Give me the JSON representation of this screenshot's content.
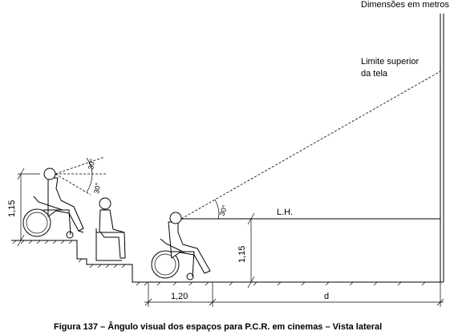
{
  "header": {
    "units_note": "Dimensões em metros"
  },
  "screen": {
    "label": "Limite superior da tela",
    "label_line1": "Limite superior",
    "label_line2": "da tela"
  },
  "sightline": {
    "horizontal_label": "L.H.",
    "angle_label": "30°"
  },
  "viewer_top": {
    "angle_upper": "30°",
    "angle_lower": "30°",
    "eye_height": "1,15"
  },
  "viewer_front": {
    "eye_height": "1,15"
  },
  "dimensions": {
    "space_width": "1,20",
    "distance": "d"
  },
  "caption": "Figura 137 – Ângulo visual dos espaços para P.C.R. em cinemas – Vista lateral"
}
